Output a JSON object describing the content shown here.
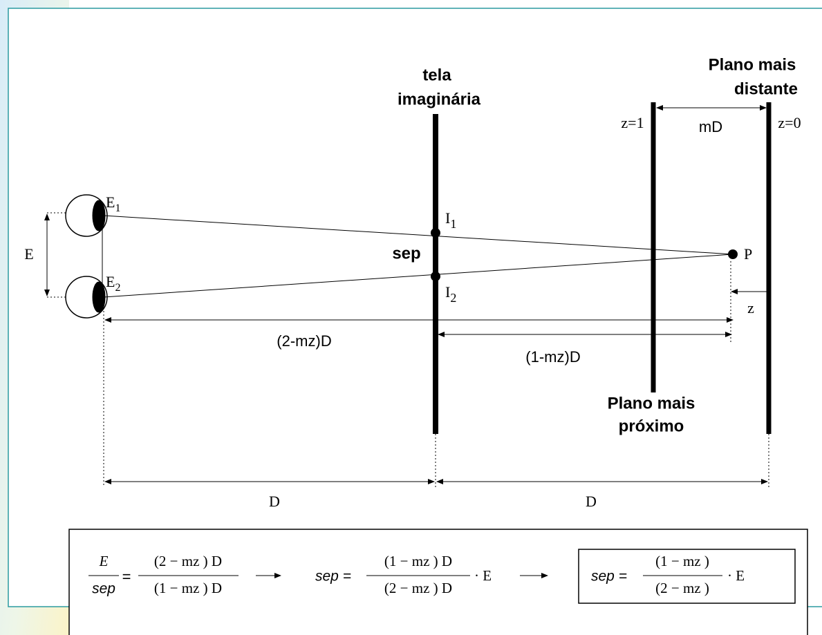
{
  "labels": {
    "screen": [
      "tela",
      "imaginária"
    ],
    "far_plane": [
      "Plano mais",
      "distante"
    ],
    "near_plane": [
      "Plano mais",
      "próximo"
    ],
    "z1": "z=1",
    "z0": "z=0",
    "mD": "mD",
    "E": "E",
    "E1": {
      "base": "E",
      "sub": "1"
    },
    "E2": {
      "base": "E",
      "sub": "2"
    },
    "I1": {
      "base": "I",
      "sub": "1"
    },
    "I2": {
      "base": "I",
      "sub": "2"
    },
    "sep": "sep",
    "P": "P",
    "z": "z",
    "dist_2mz": "(2-mz)D",
    "dist_1mz": "(1-mz)D",
    "D_left": "D",
    "D_right": "D"
  },
  "formula": {
    "f1": {
      "num": "E",
      "den": "sep",
      "eq": "=",
      "rnum": "(2 − mz ) D",
      "rden": "(1 − mz ) D"
    },
    "f2": {
      "lhs": "sep =",
      "num": "(1 − mz ) D",
      "den": "(2 − mz ) D",
      "tail": "· E"
    },
    "f3": {
      "lhs": "sep =",
      "num": "(1 − mz )",
      "den": "(2 − mz )",
      "tail": "· E"
    }
  }
}
